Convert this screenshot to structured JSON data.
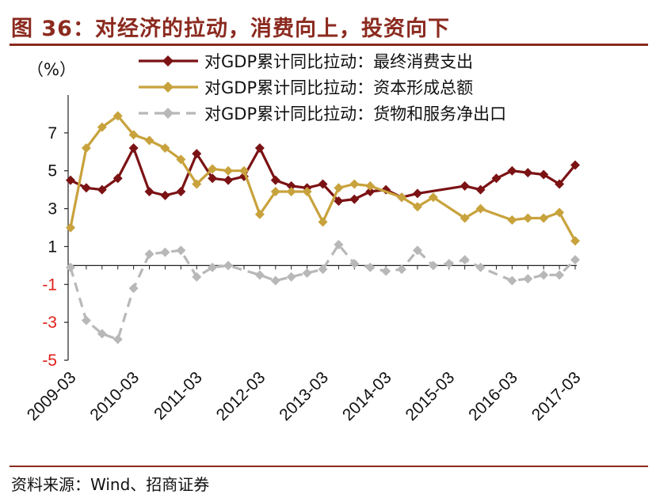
{
  "header": {
    "title": "图 36：对经济的拉动，消费向上，投资向下"
  },
  "footer": {
    "source": "资料来源：Wind、招商证券"
  },
  "chart_data": {
    "type": "line",
    "title": "图 36：对经济的拉动，消费向上，投资向下",
    "ylabel": "（%）",
    "xlabel": "",
    "ylim": [
      -5,
      9
    ],
    "yticks": [
      7,
      5,
      3,
      1,
      -1,
      -3,
      -5
    ],
    "tick_labels": [
      "2009-03",
      "2010-03",
      "2011-03",
      "2012-03",
      "2013-03",
      "2014-03",
      "2015-03",
      "2016-03",
      "2017-03"
    ],
    "x": [
      "2009-03",
      "2009-06",
      "2009-09",
      "2009-12",
      "2010-03",
      "2010-06",
      "2010-09",
      "2010-12",
      "2011-03",
      "2011-06",
      "2011-09",
      "2011-12",
      "2012-03",
      "2012-06",
      "2012-09",
      "2012-12",
      "2013-03",
      "2013-06",
      "2013-09",
      "2013-12",
      "2014-03",
      "2014-06",
      "2014-09",
      "2014-12",
      "2015-03",
      "2015-06",
      "2015-09",
      "2015-12",
      "2016-03",
      "2016-06",
      "2016-09",
      "2016-12",
      "2017-03"
    ],
    "legend_position": "top",
    "series": [
      {
        "name": "对GDP累计同比拉动：最终消费支出",
        "color": "#7b1214",
        "style": "solid",
        "marker": "diamond",
        "values": [
          4.5,
          4.1,
          4.0,
          4.6,
          6.2,
          3.9,
          3.7,
          3.9,
          5.9,
          4.6,
          4.5,
          4.7,
          6.2,
          4.5,
          4.2,
          4.1,
          4.3,
          3.4,
          3.5,
          3.9,
          4.0,
          3.6,
          3.8,
          null,
          null,
          4.2,
          4.0,
          4.6,
          5.0,
          4.9,
          4.8,
          4.3,
          5.3
        ]
      },
      {
        "name": "对GDP累计同比拉动：资本形成总额",
        "color": "#c8a23c",
        "style": "solid",
        "marker": "diamond",
        "values": [
          2.0,
          6.2,
          7.3,
          7.9,
          6.9,
          6.6,
          6.2,
          5.6,
          4.3,
          5.1,
          5.0,
          5.0,
          2.7,
          3.9,
          3.9,
          3.9,
          2.3,
          4.1,
          4.3,
          4.2,
          null,
          3.6,
          3.1,
          3.6,
          null,
          2.5,
          3.0,
          null,
          2.4,
          2.5,
          2.5,
          2.8,
          1.3
        ]
      },
      {
        "name": "对GDP累计同比拉动：货物和服务净出口",
        "color": "#b8b8b8",
        "style": "dashed",
        "marker": "diamond",
        "values": [
          -0.1,
          -2.9,
          -3.6,
          -3.9,
          -1.2,
          0.6,
          0.7,
          0.8,
          -0.6,
          -0.1,
          0.0,
          null,
          -0.5,
          -0.8,
          -0.6,
          -0.4,
          -0.2,
          1.1,
          0.1,
          -0.1,
          -0.3,
          -0.2,
          0.8,
          0.0,
          0.1,
          0.3,
          -0.1,
          null,
          -0.8,
          -0.7,
          -0.5,
          -0.5,
          0.3
        ]
      }
    ]
  }
}
